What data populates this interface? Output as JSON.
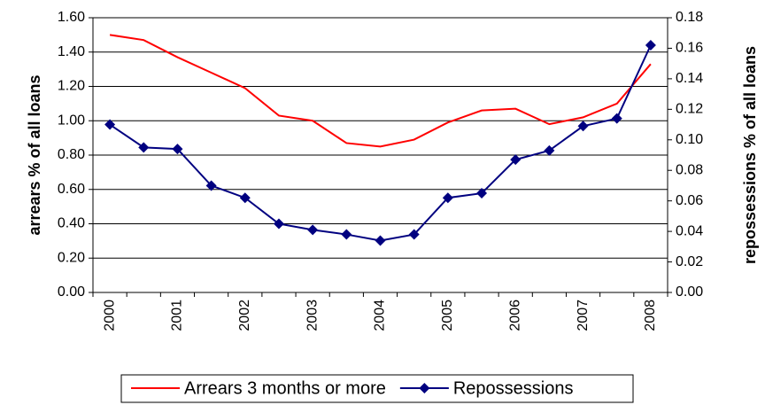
{
  "chart_data": {
    "type": "line",
    "categories": [
      "2000",
      null,
      "2001",
      null,
      "2002",
      null,
      "2003",
      null,
      "2004",
      null,
      "2005",
      null,
      "2006",
      null,
      "2007",
      null,
      "2008"
    ],
    "series": [
      {
        "name": "Arrears 3 months or more",
        "color": "#ff0000",
        "axis": "y",
        "marker": "none",
        "values": [
          1.5,
          1.47,
          1.37,
          1.28,
          1.19,
          1.03,
          1.0,
          0.87,
          0.85,
          0.89,
          0.99,
          1.06,
          1.07,
          0.98,
          1.02,
          1.1,
          1.33
        ]
      },
      {
        "name": "Repossessions",
        "color": "#000080",
        "axis": "y2",
        "marker": "diamond",
        "values": [
          0.11,
          0.095,
          0.094,
          0.07,
          0.062,
          0.045,
          0.041,
          0.038,
          0.034,
          0.038,
          0.062,
          0.065,
          0.087,
          0.093,
          0.109,
          0.114,
          0.162
        ]
      }
    ],
    "ylabel": "arrears % of all loans",
    "y2label": "repossessions % of all loans",
    "ylim": [
      0,
      1.6
    ],
    "yticks": [
      {
        "value": 0,
        "label": "0.00"
      },
      {
        "value": 0.2,
        "label": "0.20"
      },
      {
        "value": 0.4,
        "label": "0.40"
      },
      {
        "value": 0.6,
        "label": "0.60"
      },
      {
        "value": 0.8,
        "label": "0.80"
      },
      {
        "value": 1.0,
        "label": "1.00"
      },
      {
        "value": 1.2,
        "label": "1.20"
      },
      {
        "value": 1.4,
        "label": "1.40"
      },
      {
        "value": 1.6,
        "label": "1.60"
      }
    ],
    "y2lim": [
      0,
      0.18
    ],
    "y2ticks": [
      {
        "value": 0,
        "label": "0.00"
      },
      {
        "value": 0.02,
        "label": "0.02"
      },
      {
        "value": 0.04,
        "label": "0.04"
      },
      {
        "value": 0.06,
        "label": "0.06"
      },
      {
        "value": 0.08,
        "label": "0.08"
      },
      {
        "value": 0.1,
        "label": "0.10"
      },
      {
        "value": 0.12,
        "label": "0.12"
      },
      {
        "value": 0.14,
        "label": "0.14"
      },
      {
        "value": 0.16,
        "label": "0.16"
      },
      {
        "value": 0.18,
        "label": "0.18"
      }
    ],
    "grid": true,
    "legend": "bottom"
  }
}
